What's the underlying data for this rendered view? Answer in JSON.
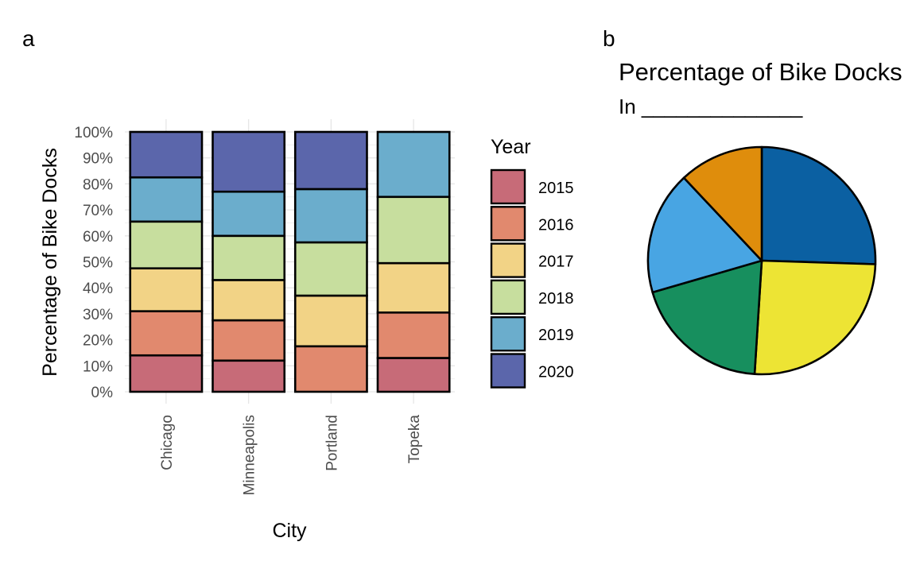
{
  "panels": {
    "a": "a",
    "b": "b"
  },
  "chart_data": [
    {
      "type": "bar",
      "stacked": true,
      "xlabel": "City",
      "ylabel": "Percentage of Bike Docks",
      "ylim": [
        0,
        100
      ],
      "yticks": [
        "0%",
        "10%",
        "20%",
        "30%",
        "40%",
        "50%",
        "60%",
        "70%",
        "80%",
        "90%",
        "100%"
      ],
      "categories": [
        "Chicago",
        "Minneapolis",
        "Portland",
        "Topeka"
      ],
      "legend": {
        "title": "Year",
        "placement": "right"
      },
      "series": [
        {
          "name": "2015",
          "color": "#c76b78",
          "values": [
            14,
            12,
            0,
            13
          ]
        },
        {
          "name": "2016",
          "color": "#e1896e",
          "values": [
            17,
            15.5,
            17.5,
            17.5
          ]
        },
        {
          "name": "2017",
          "color": "#f2d386",
          "values": [
            16.5,
            15.5,
            19.5,
            19
          ]
        },
        {
          "name": "2018",
          "color": "#c7de9e",
          "values": [
            18,
            17,
            20.5,
            25.5
          ]
        },
        {
          "name": "2019",
          "color": "#6badcc",
          "values": [
            17,
            17,
            20.5,
            25
          ]
        },
        {
          "name": "2020",
          "color": "#5b66ab",
          "values": [
            17.5,
            23,
            22,
            0
          ]
        }
      ],
      "grid": true
    },
    {
      "type": "pie",
      "title": "Percentage of Bike Docks",
      "subtitle": "In ______________",
      "slices": [
        {
          "value": 25.5,
          "color": "#0b60a2"
        },
        {
          "value": 25.5,
          "color": "#ede434"
        },
        {
          "value": 19.5,
          "color": "#178f5e"
        },
        {
          "value": 17.5,
          "color": "#48a5e3"
        },
        {
          "value": 12,
          "color": "#df8d0c"
        }
      ]
    }
  ]
}
